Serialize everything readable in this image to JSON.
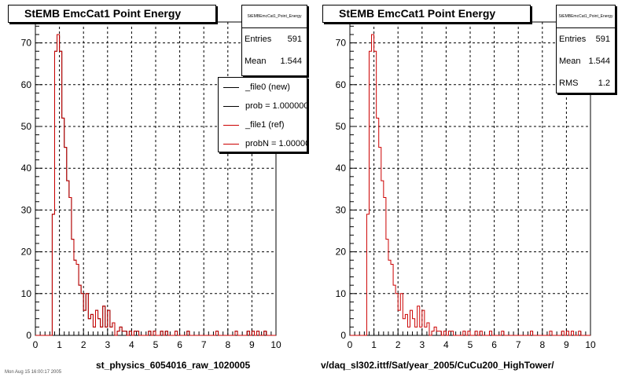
{
  "colors": {
    "new": "#000000",
    "ref": "#cc0000",
    "grid": "#000000"
  },
  "left_panel": {
    "title": "StEMB EmcCat1 Point Energy",
    "stats": {
      "name": "StEMBEmcCat1_Point_Energy",
      "entries_label": "Entries",
      "entries": "591",
      "mean_label": "Mean",
      "mean": "1.544"
    },
    "legend": [
      {
        "label": "_file0 (new)",
        "color": "#000000"
      },
      {
        "label": "prob = 1.000000",
        "color": "#000000"
      },
      {
        "label": "_file1 (ref)",
        "color": "#cc0000"
      },
      {
        "label": "probN = 1.000000",
        "color": "#cc0000"
      }
    ],
    "xcaption": "st_physics_6054016_raw_1020005"
  },
  "right_panel": {
    "title": "StEMB EmcCat1 Point Energy",
    "stats": {
      "name": "StEMBEmcCat1_Point_Energy",
      "entries_label": "Entries",
      "entries": "591",
      "mean_label": "Mean",
      "mean": "1.544",
      "rms_label": "RMS",
      "rms": "1.2"
    },
    "xcaption": "v/daq_sl302.ittf/Sat/year_2005/CuCu200_HighTower/"
  },
  "footnote": "Mon Aug 15 16:00:17 2005",
  "chart_data": [
    {
      "type": "bar",
      "title": "StEMB EmcCat1 Point Energy",
      "xlabel": "",
      "ylabel": "",
      "xlim": [
        0,
        10
      ],
      "ylim": [
        0,
        75
      ],
      "x_ticks": [
        0,
        1,
        2,
        3,
        4,
        5,
        6,
        7,
        8,
        9,
        10
      ],
      "y_ticks": [
        0,
        10,
        20,
        30,
        40,
        50,
        60,
        70
      ],
      "grid": true,
      "bin_width": 0.1,
      "bin_start": 0,
      "series": [
        {
          "name": "_file0 (new)",
          "values": [
            0,
            0,
            0,
            0,
            0,
            0,
            0,
            29,
            68,
            72,
            68,
            52,
            45,
            37,
            33,
            23,
            18,
            17,
            12,
            10,
            6,
            10,
            4,
            5,
            2,
            6,
            4,
            2,
            7,
            2,
            6,
            2,
            3,
            0,
            1,
            2,
            1,
            1,
            0,
            1,
            0,
            1,
            1,
            0,
            0,
            0,
            0,
            1,
            0,
            1,
            0,
            0,
            1,
            0,
            1,
            0,
            0,
            0,
            1,
            0,
            0,
            0,
            0,
            1,
            0,
            0,
            0,
            0,
            0,
            0,
            0,
            0,
            0,
            0,
            0,
            1,
            0,
            0,
            0,
            0,
            0,
            0,
            0,
            1,
            0,
            0,
            0,
            0,
            1,
            0,
            1,
            0,
            1,
            0,
            0,
            1,
            0,
            0,
            0,
            0
          ]
        },
        {
          "name": "_file1 (ref)",
          "values": [
            0,
            0,
            0,
            0,
            0,
            0,
            0,
            29,
            68,
            72,
            68,
            52,
            45,
            37,
            33,
            23,
            18,
            17,
            12,
            10,
            6,
            10,
            4,
            5,
            2,
            6,
            4,
            2,
            7,
            2,
            6,
            2,
            3,
            0,
            1,
            2,
            1,
            1,
            0,
            1,
            0,
            1,
            1,
            0,
            0,
            0,
            0,
            1,
            0,
            1,
            0,
            0,
            1,
            0,
            1,
            0,
            0,
            0,
            1,
            0,
            0,
            0,
            0,
            1,
            0,
            0,
            0,
            0,
            0,
            0,
            0,
            0,
            0,
            0,
            0,
            1,
            0,
            0,
            0,
            0,
            0,
            0,
            0,
            1,
            0,
            0,
            0,
            0,
            1,
            0,
            1,
            0,
            1,
            0,
            0,
            1,
            0,
            0,
            0,
            0
          ]
        }
      ]
    },
    {
      "type": "bar",
      "title": "StEMB EmcCat1 Point Energy",
      "xlabel": "",
      "ylabel": "",
      "xlim": [
        0,
        10
      ],
      "ylim": [
        0,
        75
      ],
      "x_ticks": [
        0,
        1,
        2,
        3,
        4,
        5,
        6,
        7,
        8,
        9,
        10
      ],
      "y_ticks": [
        0,
        10,
        20,
        30,
        40,
        50,
        60,
        70
      ],
      "grid": true,
      "bin_width": 0.1,
      "bin_start": 0,
      "series": [
        {
          "name": "",
          "values": [
            0,
            0,
            0,
            0,
            0,
            0,
            0,
            29,
            68,
            72,
            68,
            52,
            45,
            37,
            33,
            23,
            18,
            17,
            12,
            10,
            6,
            10,
            4,
            5,
            2,
            6,
            4,
            2,
            7,
            2,
            6,
            2,
            3,
            0,
            1,
            2,
            1,
            1,
            0,
            1,
            0,
            1,
            1,
            0,
            0,
            0,
            0,
            1,
            0,
            1,
            0,
            0,
            1,
            0,
            1,
            0,
            0,
            0,
            1,
            0,
            0,
            0,
            0,
            1,
            0,
            0,
            0,
            0,
            0,
            0,
            0,
            0,
            0,
            0,
            0,
            1,
            0,
            0,
            0,
            0,
            0,
            0,
            0,
            1,
            0,
            0,
            0,
            0,
            1,
            0,
            1,
            0,
            1,
            0,
            0,
            1,
            0,
            0,
            0,
            0
          ]
        }
      ]
    }
  ]
}
